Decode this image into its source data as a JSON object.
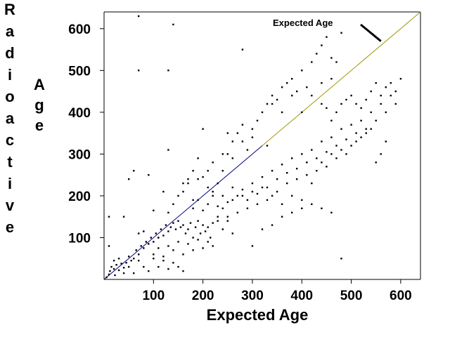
{
  "chart_data": {
    "type": "scatter",
    "title": "",
    "xlabel": "Expected Age",
    "ylabel_letters": [
      "R",
      "a",
      "d",
      "i",
      "o",
      "a",
      "c",
      "t",
      "i",
      "v",
      "e"
    ],
    "ylabel_word2_letters": [
      "A",
      "g",
      "e"
    ],
    "xlim": [
      0,
      640
    ],
    "ylim": [
      0,
      640
    ],
    "xticks": [
      100,
      200,
      300,
      400,
      500,
      600
    ],
    "yticks": [
      100,
      200,
      300,
      400,
      500,
      600
    ],
    "xtick_labels": [
      "100",
      "200",
      "300",
      "400",
      "500",
      "600"
    ],
    "ytick_labels": [
      "100",
      "200",
      "300",
      "400",
      "500",
      "600"
    ],
    "grid": false,
    "reference_line": {
      "label": "Expected Age",
      "from": [
        0,
        0
      ],
      "to": [
        640,
        640
      ],
      "colors": [
        "#00007a",
        "#a39400"
      ]
    },
    "annotation": {
      "text": "Expected Age",
      "arrow_tip": [
        560,
        570
      ]
    },
    "points": [
      [
        5,
        5
      ],
      [
        10,
        12
      ],
      [
        12,
        20
      ],
      [
        15,
        30
      ],
      [
        20,
        25
      ],
      [
        22,
        10
      ],
      [
        25,
        35
      ],
      [
        30,
        22
      ],
      [
        35,
        38
      ],
      [
        40,
        28
      ],
      [
        45,
        40
      ],
      [
        50,
        55
      ],
      [
        55,
        45
      ],
      [
        60,
        50
      ],
      [
        65,
        70
      ],
      [
        70,
        60
      ],
      [
        75,
        80
      ],
      [
        80,
        75
      ],
      [
        85,
        90
      ],
      [
        90,
        85
      ],
      [
        95,
        100
      ],
      [
        100,
        90
      ],
      [
        105,
        110
      ],
      [
        110,
        100
      ],
      [
        115,
        120
      ],
      [
        120,
        105
      ],
      [
        125,
        130
      ],
      [
        130,
        115
      ],
      [
        135,
        125
      ],
      [
        140,
        135
      ],
      [
        145,
        120
      ],
      [
        150,
        140
      ],
      [
        155,
        125
      ],
      [
        160,
        130
      ],
      [
        165,
        110
      ],
      [
        170,
        120
      ],
      [
        175,
        135
      ],
      [
        180,
        100
      ],
      [
        185,
        125
      ],
      [
        190,
        140
      ],
      [
        195,
        110
      ],
      [
        200,
        130
      ],
      [
        205,
        115
      ],
      [
        210,
        125
      ],
      [
        215,
        100
      ],
      [
        220,
        135
      ],
      [
        230,
        150
      ],
      [
        240,
        120
      ],
      [
        250,
        140
      ],
      [
        260,
        110
      ],
      [
        100,
        60
      ],
      [
        110,
        75
      ],
      [
        120,
        55
      ],
      [
        130,
        80
      ],
      [
        140,
        70
      ],
      [
        150,
        90
      ],
      [
        160,
        60
      ],
      [
        170,
        85
      ],
      [
        180,
        70
      ],
      [
        190,
        95
      ],
      [
        200,
        75
      ],
      [
        210,
        90
      ],
      [
        220,
        80
      ],
      [
        140,
        40
      ],
      [
        150,
        30
      ],
      [
        160,
        20
      ],
      [
        130,
        25
      ],
      [
        120,
        45
      ],
      [
        110,
        30
      ],
      [
        100,
        50
      ],
      [
        90,
        20
      ],
      [
        80,
        30
      ],
      [
        70,
        45
      ],
      [
        60,
        15
      ],
      [
        50,
        30
      ],
      [
        40,
        15
      ],
      [
        30,
        50
      ],
      [
        20,
        45
      ],
      [
        10,
        150
      ],
      [
        10,
        80
      ],
      [
        40,
        150
      ],
      [
        50,
        240
      ],
      [
        60,
        260
      ],
      [
        70,
        110
      ],
      [
        80,
        115
      ],
      [
        90,
        250
      ],
      [
        100,
        165
      ],
      [
        110,
        100
      ],
      [
        120,
        210
      ],
      [
        130,
        160
      ],
      [
        140,
        180
      ],
      [
        150,
        200
      ],
      [
        160,
        230
      ],
      [
        170,
        240
      ],
      [
        180,
        260
      ],
      [
        190,
        290
      ],
      [
        200,
        245
      ],
      [
        210,
        220
      ],
      [
        220,
        200
      ],
      [
        230,
        230
      ],
      [
        240,
        260
      ],
      [
        250,
        300
      ],
      [
        260,
        330
      ],
      [
        270,
        350
      ],
      [
        280,
        370
      ],
      [
        290,
        310
      ],
      [
        300,
        360
      ],
      [
        310,
        380
      ],
      [
        320,
        400
      ],
      [
        330,
        420
      ],
      [
        340,
        440
      ],
      [
        350,
        430
      ],
      [
        360,
        460
      ],
      [
        370,
        470
      ],
      [
        380,
        480
      ],
      [
        390,
        450
      ],
      [
        400,
        500
      ],
      [
        410,
        460
      ],
      [
        420,
        520
      ],
      [
        430,
        540
      ],
      [
        440,
        560
      ],
      [
        450,
        580
      ],
      [
        460,
        530
      ],
      [
        470,
        520
      ],
      [
        480,
        590
      ],
      [
        180,
        170
      ],
      [
        190,
        190
      ],
      [
        200,
        165
      ],
      [
        210,
        180
      ],
      [
        220,
        210
      ],
      [
        230,
        175
      ],
      [
        240,
        200
      ],
      [
        250,
        185
      ],
      [
        260,
        220
      ],
      [
        270,
        200
      ],
      [
        280,
        215
      ],
      [
        290,
        190
      ],
      [
        300,
        230
      ],
      [
        310,
        205
      ],
      [
        320,
        245
      ],
      [
        330,
        220
      ],
      [
        340,
        260
      ],
      [
        350,
        240
      ],
      [
        360,
        275
      ],
      [
        370,
        255
      ],
      [
        380,
        290
      ],
      [
        390,
        265
      ],
      [
        400,
        300
      ],
      [
        410,
        280
      ],
      [
        420,
        310
      ],
      [
        430,
        290
      ],
      [
        440,
        330
      ],
      [
        450,
        305
      ],
      [
        460,
        340
      ],
      [
        470,
        320
      ],
      [
        480,
        360
      ],
      [
        490,
        335
      ],
      [
        500,
        370
      ],
      [
        510,
        350
      ],
      [
        520,
        380
      ],
      [
        530,
        360
      ],
      [
        540,
        400
      ],
      [
        550,
        380
      ],
      [
        560,
        420
      ],
      [
        570,
        400
      ],
      [
        580,
        440
      ],
      [
        590,
        420
      ],
      [
        600,
        480
      ],
      [
        230,
        140
      ],
      [
        240,
        170
      ],
      [
        250,
        150
      ],
      [
        260,
        190
      ],
      [
        270,
        160
      ],
      [
        280,
        200
      ],
      [
        290,
        170
      ],
      [
        300,
        210
      ],
      [
        310,
        180
      ],
      [
        320,
        220
      ],
      [
        330,
        190
      ],
      [
        340,
        200
      ],
      [
        350,
        210
      ],
      [
        360,
        180
      ],
      [
        370,
        230
      ],
      [
        380,
        200
      ],
      [
        390,
        240
      ],
      [
        400,
        190
      ],
      [
        410,
        250
      ],
      [
        420,
        230
      ],
      [
        430,
        260
      ],
      [
        440,
        280
      ],
      [
        450,
        270
      ],
      [
        460,
        300
      ],
      [
        470,
        290
      ],
      [
        480,
        310
      ],
      [
        490,
        300
      ],
      [
        500,
        320
      ],
      [
        510,
        330
      ],
      [
        520,
        340
      ],
      [
        530,
        350
      ],
      [
        540,
        360
      ],
      [
        550,
        280
      ],
      [
        560,
        300
      ],
      [
        570,
        330
      ],
      [
        300,
        80
      ],
      [
        320,
        120
      ],
      [
        340,
        130
      ],
      [
        360,
        150
      ],
      [
        380,
        160
      ],
      [
        400,
        170
      ],
      [
        420,
        180
      ],
      [
        440,
        170
      ],
      [
        460,
        160
      ],
      [
        480,
        50
      ],
      [
        440,
        420
      ],
      [
        450,
        410
      ],
      [
        460,
        380
      ],
      [
        470,
        400
      ],
      [
        480,
        420
      ],
      [
        490,
        430
      ],
      [
        500,
        440
      ],
      [
        510,
        420
      ],
      [
        520,
        410
      ],
      [
        530,
        430
      ],
      [
        540,
        450
      ],
      [
        550,
        470
      ],
      [
        560,
        440
      ],
      [
        570,
        460
      ],
      [
        580,
        470
      ],
      [
        590,
        450
      ],
      [
        70,
        630
      ],
      [
        140,
        610
      ],
      [
        70,
        500
      ],
      [
        130,
        500
      ],
      [
        280,
        550
      ],
      [
        130,
        310
      ],
      [
        180,
        190
      ],
      [
        200,
        360
      ],
      [
        260,
        290
      ],
      [
        330,
        320
      ],
      [
        360,
        400
      ],
      [
        400,
        400
      ],
      [
        420,
        440
      ],
      [
        440,
        470
      ],
      [
        460,
        480
      ],
      [
        380,
        440
      ],
      [
        340,
        420
      ],
      [
        300,
        340
      ],
      [
        280,
        330
      ],
      [
        250,
        350
      ],
      [
        240,
        300
      ],
      [
        220,
        280
      ],
      [
        210,
        260
      ],
      [
        190,
        240
      ],
      [
        170,
        230
      ],
      [
        160,
        210
      ]
    ]
  }
}
